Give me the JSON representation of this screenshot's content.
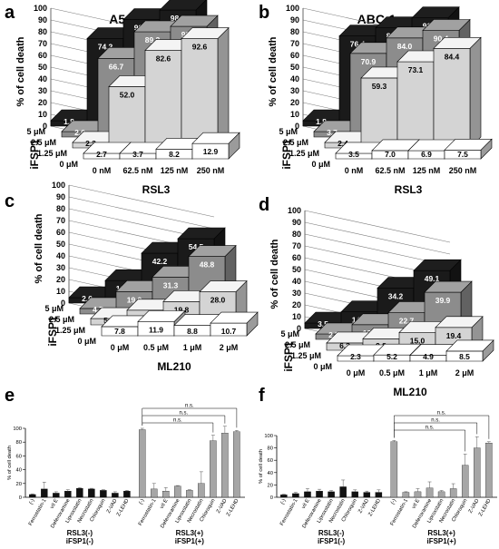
{
  "chart_data": [
    {
      "panel": "a",
      "type": "bar3d",
      "title": "A549",
      "ylabel": "% of cell death",
      "xlabel": "RSL3",
      "zlabel": "iFSP1",
      "x_ticks": [
        "0 nM",
        "62.5 nM",
        "125 nM",
        "250 nM"
      ],
      "z_ticks": [
        "0 μM",
        "1.25 μM",
        "2.5 μM",
        "5 μM"
      ],
      "y_ticks": [
        "0",
        "10",
        "20",
        "30",
        "40",
        "50",
        "60",
        "70",
        "80",
        "90",
        "100"
      ],
      "ylim": [
        0,
        100
      ],
      "values": [
        [
          2.7,
          3.7,
          8.2,
          12.9
        ],
        [
          2.3,
          52.0,
          82.6,
          92.6
        ],
        [
          2.6,
          66.7,
          89.2,
          93.8
        ],
        [
          1.8,
          74.2,
          90.3,
          98.4
        ]
      ],
      "labels": [
        [
          "2.7",
          "3.7",
          "8.2",
          "12.9"
        ],
        [
          "2.3",
          "52.0",
          "82.6",
          "92.6"
        ],
        [
          "2.6",
          "66.7",
          "89.2",
          "93.8"
        ],
        [
          "1.8",
          "74.2",
          "90.3",
          "98.4"
        ]
      ]
    },
    {
      "panel": "b",
      "type": "bar3d",
      "title": "ABC-1",
      "ylabel": "% of cell death",
      "xlabel": "RSL3",
      "zlabel": "iFSP1",
      "x_ticks": [
        "0 nM",
        "62.5 nM",
        "125 nM",
        "250 nM"
      ],
      "z_ticks": [
        "0 μM",
        "1.25 μM",
        "2.5 μM",
        "5 μM"
      ],
      "y_ticks": [
        "0",
        "10",
        "20",
        "30",
        "40",
        "50",
        "60",
        "70",
        "80",
        "90",
        "100"
      ],
      "ylim": [
        0,
        100
      ],
      "values": [
        [
          3.5,
          7.0,
          6.9,
          7.5
        ],
        [
          2.4,
          59.3,
          73.1,
          84.4
        ],
        [
          3.7,
          70.9,
          84.0,
          90.4
        ],
        [
          1.8,
          76.4,
          83.3,
          91.8
        ]
      ],
      "labels": [
        [
          "3.5",
          "7.0",
          "6.9",
          "7.5"
        ],
        [
          "2.4",
          "59.3",
          "73.1",
          "84.4"
        ],
        [
          "3.7",
          "70.9",
          "84.0",
          "90.4"
        ],
        [
          "1.8",
          "76.4",
          "83.3",
          "91.8"
        ]
      ]
    },
    {
      "panel": "c",
      "type": "bar3d",
      "title": "",
      "ylabel": "% of cell death",
      "xlabel": "ML210",
      "zlabel": "iFSP1",
      "x_ticks": [
        "0 μM",
        "0.5 μM",
        "1 μM",
        "2 μM"
      ],
      "z_ticks": [
        "0 μM",
        "1.25 μM",
        "2.5 μM",
        "5 μM"
      ],
      "y_ticks": [
        "0",
        "10",
        "20",
        "30",
        "40",
        "50",
        "60",
        "70",
        "80",
        "90",
        "100"
      ],
      "ylim": [
        0,
        100
      ],
      "values": [
        [
          7.8,
          11.9,
          8.8,
          10.7
        ],
        [
          5.3,
          12.5,
          19.8,
          28.0
        ],
        [
          4.7,
          19.0,
          31.3,
          48.8
        ],
        [
          2.6,
          19.1,
          42.2,
          54.5
        ]
      ],
      "labels": [
        [
          "7.8",
          "11.9",
          "8.8",
          "10.7"
        ],
        [
          "5.3",
          "12.5",
          "19.8",
          "28.0"
        ],
        [
          "4.7",
          "19.0",
          "31.3",
          "48.8"
        ],
        [
          "2.6",
          "19.1",
          "42.2",
          "54.5"
        ]
      ]
    },
    {
      "panel": "d",
      "type": "bar3d",
      "title": "",
      "ylabel": "% of cell death",
      "xlabel": "ML210",
      "zlabel": "iFSP1",
      "x_ticks": [
        "0 μM",
        "0.5 μM",
        "1 μM",
        "2 μM"
      ],
      "z_ticks": [
        "0 μM",
        "1.25 μM",
        "2.5 μM",
        "5 μM"
      ],
      "y_ticks": [
        "0",
        "10",
        "20",
        "30",
        "40",
        "50",
        "60",
        "70",
        "80",
        "90",
        "100"
      ],
      "ylim": [
        0,
        100
      ],
      "values": [
        [
          2.3,
          5.2,
          4.9,
          8.5
        ],
        [
          6.2,
          9.8,
          15.0,
          19.4
        ],
        [
          2.5,
          12.5,
          22.7,
          39.9
        ],
        [
          3.5,
          14.1,
          34.2,
          49.1
        ]
      ],
      "labels": [
        [
          "2.3",
          "5.2",
          "4.9",
          "8.5"
        ],
        [
          "6.2",
          "9.8",
          "15.0",
          "19.4"
        ],
        [
          "2.5",
          "12.5",
          "22.7",
          "39.9"
        ],
        [
          "3.5",
          "14.1",
          "34.2",
          "49.1"
        ]
      ]
    },
    {
      "panel": "e",
      "type": "bar",
      "ylabel": "% of cell death",
      "ylim": [
        0,
        100
      ],
      "y_ticks": [
        "0",
        "20",
        "40",
        "60",
        "80",
        "100"
      ],
      "groups": [
        {
          "label": "RSL3(-)\niFSP1(-)",
          "color": "#111111",
          "categories": [
            "(-)",
            "Ferrostatin-1",
            "vit E",
            "Deferoxamine",
            "Liproxstatin",
            "Necrostatin",
            "Chloroquin",
            "Z-VAD",
            "Z-LEHD"
          ],
          "values": [
            4,
            12,
            6,
            9,
            13,
            12,
            10,
            6,
            9
          ],
          "errors": [
            1,
            10,
            2,
            2,
            1,
            1,
            1,
            2,
            1
          ]
        },
        {
          "label": "RSL3(+)\niFSP1(+)",
          "color": "#a6a6a6",
          "categories": [
            "(-)",
            "Ferrostatin-1",
            "vit E",
            "Deferoxamine",
            "Liproxstatin",
            "Necrostatin",
            "Chloroquin",
            "Z-VAD",
            "Z-LEHD"
          ],
          "values": [
            98,
            12,
            9,
            16,
            10,
            20,
            82,
            93,
            95
          ],
          "errors": [
            2,
            8,
            5,
            1,
            1,
            17,
            8,
            10,
            2
          ]
        }
      ],
      "annotations": [
        "n.s.",
        "n.s.",
        "n.s."
      ]
    },
    {
      "panel": "f",
      "type": "bar",
      "ylabel": "% of cell death",
      "ylim": [
        0,
        100
      ],
      "y_ticks": [
        "0",
        "20",
        "40",
        "60",
        "80",
        "100"
      ],
      "groups": [
        {
          "label": "RSL3(-)\niFSP1(-)",
          "color": "#111111",
          "categories": [
            "(-)",
            "Ferrostatin-1",
            "vit E",
            "Deferoxamine",
            "Liproxstatin",
            "Necrostatin",
            "Chloroquin",
            "Z-VAD",
            "Z-LEHD"
          ],
          "values": [
            4,
            6,
            9,
            10,
            9,
            17,
            9,
            8,
            8
          ],
          "errors": [
            1,
            2,
            5,
            3,
            2,
            11,
            3,
            2,
            4
          ]
        },
        {
          "label": "RSL3(+)\niFSP1(+)",
          "color": "#a6a6a6",
          "categories": [
            "(-)",
            "Ferrostatin-1",
            "vit E",
            "Deferoxamine",
            "Liproxstatin",
            "Necrostatin",
            "Chloroquin",
            "Z-VAD",
            "Z-LEHD"
          ],
          "values": [
            90,
            8,
            9,
            15,
            9,
            14,
            52,
            80,
            88
          ],
          "errors": [
            2,
            1,
            5,
            10,
            2,
            8,
            18,
            18,
            2
          ]
        }
      ],
      "annotations": [
        "n.s.",
        "n.s.",
        "n.s."
      ]
    }
  ]
}
